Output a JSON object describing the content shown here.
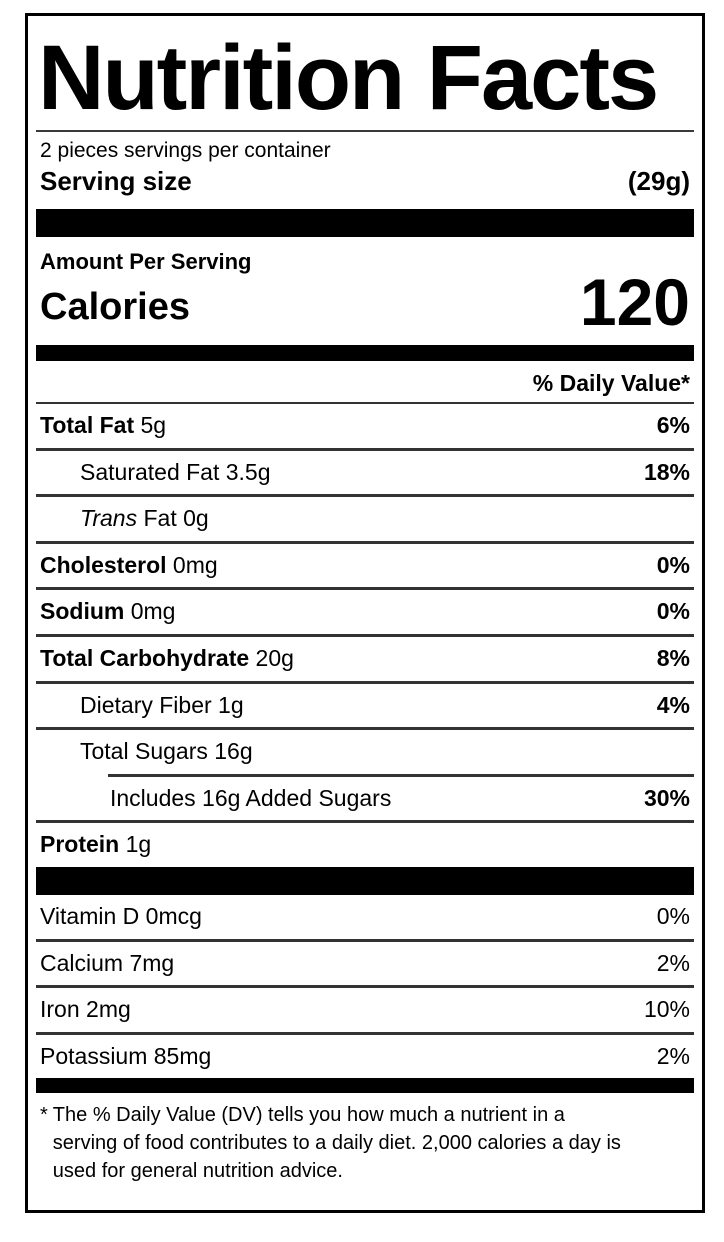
{
  "label": {
    "title": "Nutrition Facts",
    "servings_per_container": "2 pieces servings per container",
    "serving_size": {
      "label": "Serving size",
      "value": "(29g)"
    },
    "amount_per_serving": "Amount Per Serving",
    "calories": {
      "label": "Calories",
      "value": "120"
    },
    "daily_value_header": "% Daily Value*",
    "nutrients": [
      {
        "name": "Total Fat",
        "amount": "5g",
        "dv": "6%",
        "bold": true,
        "indent": 0
      },
      {
        "name": "Saturated Fat",
        "amount": "3.5g",
        "dv": "18%",
        "bold": false,
        "indent": 1
      },
      {
        "name_italic": "Trans",
        "name": "Fat",
        "amount": "0g",
        "dv": "",
        "bold": false,
        "indent": 1
      },
      {
        "name": "Cholesterol",
        "amount": "0mg",
        "dv": "0%",
        "bold": true,
        "indent": 0
      },
      {
        "name": "Sodium",
        "amount": "0mg",
        "dv": "0%",
        "bold": true,
        "indent": 0
      },
      {
        "name": "Total Carbohydrate",
        "amount": "20g",
        "dv": "8%",
        "bold": true,
        "indent": 0
      },
      {
        "name": "Dietary Fiber",
        "amount": "1g",
        "dv": "4%",
        "bold": false,
        "indent": 1
      },
      {
        "name": "Total Sugars",
        "amount": "16g",
        "dv": "",
        "bold": false,
        "indent": 1,
        "rule_after": "indented"
      },
      {
        "name": "Includes 16g Added Sugars",
        "amount": "",
        "dv": "30%",
        "bold": false,
        "indent": 2
      },
      {
        "name": "Protein",
        "amount": "1g",
        "dv": "",
        "bold": true,
        "indent": 0,
        "rule_after": "none"
      }
    ],
    "vitamins": [
      {
        "name": "Vitamin D",
        "amount": "0mcg",
        "dv": "0%",
        "bold": false,
        "indent": 0
      },
      {
        "name": "Calcium",
        "amount": "7mg",
        "dv": "2%",
        "bold": false,
        "indent": 0
      },
      {
        "name": "Iron",
        "amount": "2mg",
        "dv": "10%",
        "bold": false,
        "indent": 0
      },
      {
        "name": "Potassium",
        "amount": "85mg",
        "dv": "2%",
        "bold": false,
        "indent": 0,
        "rule_after": "none"
      }
    ],
    "footnote": {
      "star": "*",
      "text": "The % Daily Value (DV) tells you how much a nutrient in a serving of food contributes to a daily diet. 2,000 calories a day is used for general nutrition advice."
    },
    "colors": {
      "text": "#000000",
      "rule": "#333333",
      "bar": "#000000",
      "background": "#ffffff"
    }
  }
}
